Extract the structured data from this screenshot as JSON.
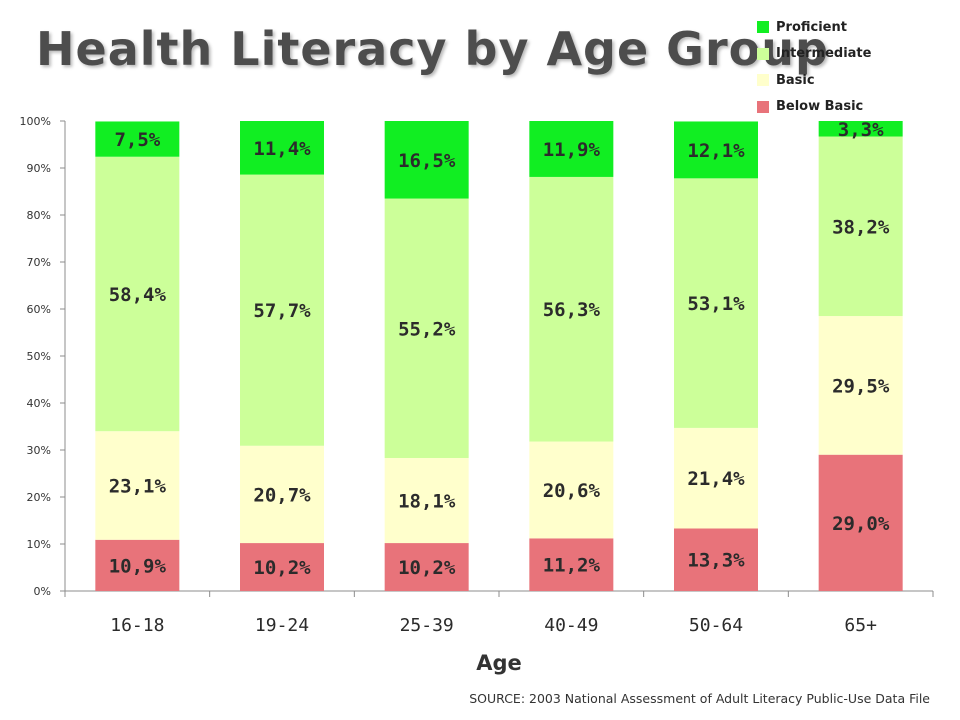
{
  "title": "Health Literacy by Age Group",
  "source": "SOURCE: 2003 National Assessment of Adult Literacy Public-Use Data File",
  "chart_data": {
    "type": "bar",
    "stacked": true,
    "title": "Health Literacy by Age Group",
    "xlabel": "Age",
    "ylabel": "",
    "categories": [
      "16-18",
      "19-24",
      "25-39",
      "40-49",
      "50-64",
      "65+"
    ],
    "ylim": [
      0,
      100
    ],
    "yticks": [
      "0%",
      "10%",
      "20%",
      "30%",
      "40%",
      "50%",
      "60%",
      "70%",
      "80%",
      "90%",
      "100%"
    ],
    "grid": false,
    "legend_position": "top-right",
    "series": [
      {
        "name": "Below Basic",
        "color": "#e8737a",
        "values": [
          10.9,
          10.2,
          10.2,
          11.2,
          13.3,
          29.0
        ],
        "labels": [
          "10,9%",
          "10,2%",
          "10,2%",
          "11,2%",
          "13,3%",
          "29,0%"
        ]
      },
      {
        "name": "Basic",
        "color": "#ffffcc",
        "values": [
          23.1,
          20.7,
          18.1,
          20.6,
          21.4,
          29.5
        ],
        "labels": [
          "23,1%",
          "20,7%",
          "18,1%",
          "20,6%",
          "21,4%",
          "29,5%"
        ]
      },
      {
        "name": "Intermediate",
        "color": "#ccff99",
        "values": [
          58.4,
          57.7,
          55.2,
          56.3,
          53.1,
          38.2
        ],
        "labels": [
          "58,4%",
          "57,7%",
          "55,2%",
          "56,3%",
          "53,1%",
          "38,2%"
        ]
      },
      {
        "name": "Proficient",
        "color": "#11ee22",
        "values": [
          7.5,
          11.4,
          16.5,
          11.9,
          12.1,
          3.3
        ],
        "labels": [
          "7,5%",
          "11,4%",
          "16,5%",
          "11,9%",
          "12,1%",
          "3,3%"
        ]
      }
    ]
  }
}
